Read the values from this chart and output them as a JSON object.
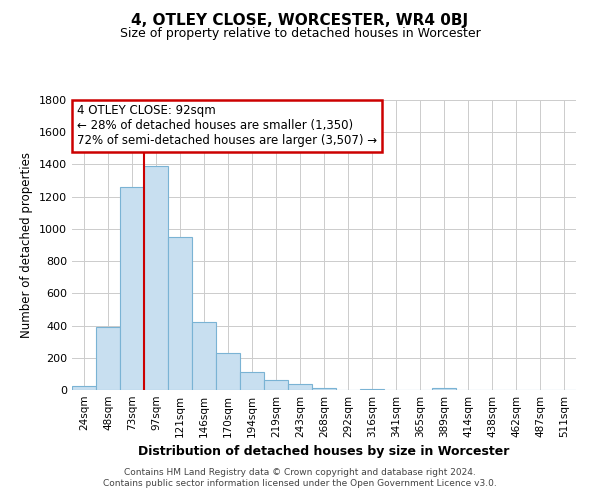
{
  "title": "4, OTLEY CLOSE, WORCESTER, WR4 0BJ",
  "subtitle": "Size of property relative to detached houses in Worcester",
  "xlabel": "Distribution of detached houses by size in Worcester",
  "ylabel": "Number of detached properties",
  "bar_labels": [
    "24sqm",
    "48sqm",
    "73sqm",
    "97sqm",
    "121sqm",
    "146sqm",
    "170sqm",
    "194sqm",
    "219sqm",
    "243sqm",
    "268sqm",
    "292sqm",
    "316sqm",
    "341sqm",
    "365sqm",
    "389sqm",
    "414sqm",
    "438sqm",
    "462sqm",
    "487sqm",
    "511sqm"
  ],
  "bar_values": [
    25,
    390,
    1260,
    1390,
    950,
    425,
    230,
    110,
    65,
    40,
    10,
    0,
    5,
    0,
    0,
    15,
    0,
    0,
    0,
    0,
    0
  ],
  "bar_color": "#c8dff0",
  "bar_edge_color": "#7ab3d4",
  "annotation_title": "4 OTLEY CLOSE: 92sqm",
  "annotation_line1": "← 28% of detached houses are smaller (1,350)",
  "annotation_line2": "72% of semi-detached houses are larger (3,507) →",
  "property_line_color": "#cc0000",
  "ylim": [
    0,
    1800
  ],
  "yticks": [
    0,
    200,
    400,
    600,
    800,
    1000,
    1200,
    1400,
    1600,
    1800
  ],
  "footer_line1": "Contains HM Land Registry data © Crown copyright and database right 2024.",
  "footer_line2": "Contains public sector information licensed under the Open Government Licence v3.0.",
  "background_color": "#ffffff",
  "grid_color": "#cccccc"
}
